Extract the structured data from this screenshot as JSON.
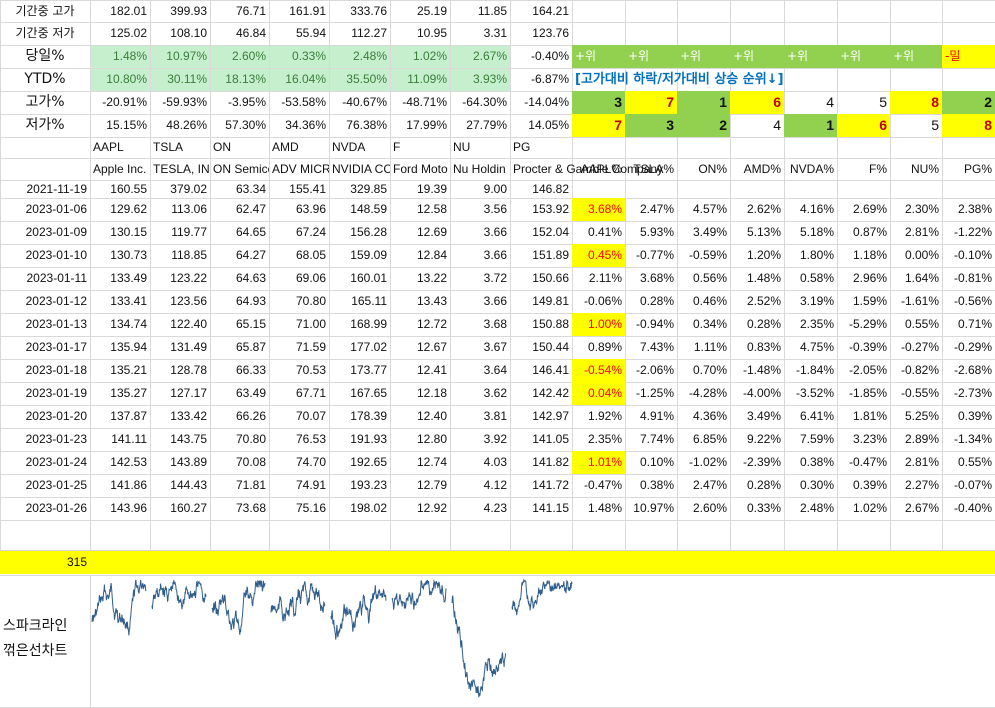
{
  "colors": {
    "light_green": "#c6efce",
    "green_text": "#3a7d3a",
    "bright_green": "#92d050",
    "yellow": "#ffff00",
    "dark_red": "#c00000",
    "red": "#ff0000",
    "blue": "#0070c0",
    "spark_blue": "#2f5d8c",
    "grid": "#d9d9d9"
  },
  "summary_rows": [
    {
      "label": "기간중 고가",
      "values": [
        "182.01",
        "399.93",
        "76.71",
        "161.91",
        "333.76",
        "25.19",
        "11.85",
        "164.21"
      ]
    },
    {
      "label": "기간중 저가",
      "values": [
        "125.02",
        "108.10",
        "46.84",
        "55.94",
        "112.27",
        "10.95",
        "3.31",
        "123.76"
      ]
    },
    {
      "label": "당일%",
      "values": [
        "1.48%",
        "10.97%",
        "2.60%",
        "0.33%",
        "2.48%",
        "1.02%",
        "2.67%",
        "-0.40%"
      ]
    },
    {
      "label": "YTD%",
      "values": [
        "10.80%",
        "30.11%",
        "18.13%",
        "16.04%",
        "35.50%",
        "11.09%",
        "3.93%",
        "-6.87%"
      ]
    },
    {
      "label": "고가%",
      "values": [
        "-20.91%",
        "-59.93%",
        "-3.95%",
        "-53.58%",
        "-40.67%",
        "-48.71%",
        "-64.30%",
        "-14.04%"
      ]
    },
    {
      "label": "저가%",
      "values": [
        "15.15%",
        "48.26%",
        "57.30%",
        "34.36%",
        "76.38%",
        "17.99%",
        "27.79%",
        "14.05%"
      ]
    }
  ],
  "direction_row": [
    "+위",
    "+위",
    "+위",
    "+위",
    "+위",
    "+위",
    "+위",
    "-밀"
  ],
  "ranking_caption": "[고가대비 하락/저가대비 상승 순위↓]",
  "rank_high": [
    "3",
    "7",
    "1",
    "6",
    "4",
    "5",
    "8",
    "2"
  ],
  "rank_low": [
    "7",
    "3",
    "2",
    "4",
    "1",
    "6",
    "5",
    "8"
  ],
  "tickers": [
    "AAPL",
    "TSLA",
    "ON",
    "AMD",
    "NVDA",
    "F",
    "NU",
    "PG"
  ],
  "company_names": [
    "Apple Inc.",
    "TESLA, INC",
    "ON Semico",
    "ADV MICR",
    "NVIDIA CC",
    "Ford Moto",
    "Nu Holdin",
    "Procter & Gamble Company"
  ],
  "pct_headers": [
    "AAPL%",
    "TSLA%",
    "ON%",
    "AMD%",
    "NVDA%",
    "F%",
    "NU%",
    "PG%"
  ],
  "base_row": {
    "date": "2021-11-19",
    "values": [
      "160.55",
      "379.02",
      "63.34",
      "155.41",
      "329.85",
      "19.39",
      "9.00",
      "146.82"
    ]
  },
  "rows": [
    {
      "date": "2023-01-06",
      "prices": [
        "129.62",
        "113.06",
        "62.47",
        "63.96",
        "148.59",
        "12.58",
        "3.56",
        "153.92"
      ],
      "pcts": [
        "3.68%",
        "2.47%",
        "4.57%",
        "2.62%",
        "4.16%",
        "2.69%",
        "2.30%",
        "2.38%"
      ]
    },
    {
      "date": "2023-01-09",
      "prices": [
        "130.15",
        "119.77",
        "64.65",
        "67.24",
        "156.28",
        "12.69",
        "3.66",
        "152.04"
      ],
      "pcts": [
        "0.41%",
        "5.93%",
        "3.49%",
        "5.13%",
        "5.18%",
        "0.87%",
        "2.81%",
        "-1.22%"
      ]
    },
    {
      "date": "2023-01-10",
      "prices": [
        "130.73",
        "118.85",
        "64.27",
        "68.05",
        "159.09",
        "12.84",
        "3.66",
        "151.89"
      ],
      "pcts": [
        "0.45%",
        "-0.77%",
        "-0.59%",
        "1.20%",
        "1.80%",
        "1.18%",
        "0.00%",
        "-0.10%"
      ]
    },
    {
      "date": "2023-01-11",
      "prices": [
        "133.49",
        "123.22",
        "64.63",
        "69.06",
        "160.01",
        "13.22",
        "3.72",
        "150.66"
      ],
      "pcts": [
        "2.11%",
        "3.68%",
        "0.56%",
        "1.48%",
        "0.58%",
        "2.96%",
        "1.64%",
        "-0.81%"
      ]
    },
    {
      "date": "2023-01-12",
      "prices": [
        "133.41",
        "123.56",
        "64.93",
        "70.80",
        "165.11",
        "13.43",
        "3.66",
        "149.81"
      ],
      "pcts": [
        "-0.06%",
        "0.28%",
        "0.46%",
        "2.52%",
        "3.19%",
        "1.59%",
        "-1.61%",
        "-0.56%"
      ]
    },
    {
      "date": "2023-01-13",
      "prices": [
        "134.74",
        "122.40",
        "65.15",
        "71.00",
        "168.99",
        "12.72",
        "3.68",
        "150.88"
      ],
      "pcts": [
        "1.00%",
        "-0.94%",
        "0.34%",
        "0.28%",
        "2.35%",
        "-5.29%",
        "0.55%",
        "0.71%"
      ]
    },
    {
      "date": "2023-01-17",
      "prices": [
        "135.94",
        "131.49",
        "65.87",
        "71.59",
        "177.02",
        "12.67",
        "3.67",
        "150.44"
      ],
      "pcts": [
        "0.89%",
        "7.43%",
        "1.11%",
        "0.83%",
        "4.75%",
        "-0.39%",
        "-0.27%",
        "-0.29%"
      ]
    },
    {
      "date": "2023-01-18",
      "prices": [
        "135.21",
        "128.78",
        "66.33",
        "70.53",
        "173.77",
        "12.41",
        "3.64",
        "146.41"
      ],
      "pcts": [
        "-0.54%",
        "-2.06%",
        "0.70%",
        "-1.48%",
        "-1.84%",
        "-2.05%",
        "-0.82%",
        "-2.68%"
      ]
    },
    {
      "date": "2023-01-19",
      "prices": [
        "135.27",
        "127.17",
        "63.49",
        "67.71",
        "167.65",
        "12.18",
        "3.62",
        "142.42"
      ],
      "pcts": [
        "0.04%",
        "-1.25%",
        "-4.28%",
        "-4.00%",
        "-3.52%",
        "-1.85%",
        "-0.55%",
        "-2.73%"
      ]
    },
    {
      "date": "2023-01-20",
      "prices": [
        "137.87",
        "133.42",
        "66.26",
        "70.07",
        "178.39",
        "12.40",
        "3.81",
        "142.97"
      ],
      "pcts": [
        "1.92%",
        "4.91%",
        "4.36%",
        "3.49%",
        "6.41%",
        "1.81%",
        "5.25%",
        "0.39%"
      ]
    },
    {
      "date": "2023-01-23",
      "prices": [
        "141.11",
        "143.75",
        "70.80",
        "76.53",
        "191.93",
        "12.80",
        "3.92",
        "141.05"
      ],
      "pcts": [
        "2.35%",
        "7.74%",
        "6.85%",
        "9.22%",
        "7.59%",
        "3.23%",
        "2.89%",
        "-1.34%"
      ]
    },
    {
      "date": "2023-01-24",
      "prices": [
        "142.53",
        "143.89",
        "70.08",
        "74.70",
        "192.65",
        "12.74",
        "4.03",
        "141.82"
      ],
      "pcts": [
        "1.01%",
        "0.10%",
        "-1.02%",
        "-2.39%",
        "0.38%",
        "-0.47%",
        "2.81%",
        "0.55%"
      ]
    },
    {
      "date": "2023-01-25",
      "prices": [
        "141.86",
        "144.43",
        "71.81",
        "74.91",
        "193.23",
        "12.79",
        "4.12",
        "141.72"
      ],
      "pcts": [
        "-0.47%",
        "0.38%",
        "2.47%",
        "0.28%",
        "0.30%",
        "0.39%",
        "2.27%",
        "-0.07%"
      ]
    },
    {
      "date": "2023-01-26",
      "prices": [
        "143.96",
        "160.27",
        "73.68",
        "75.16",
        "198.02",
        "12.92",
        "4.23",
        "141.15"
      ],
      "pcts": [
        "1.48%",
        "10.97%",
        "2.60%",
        "0.33%",
        "2.48%",
        "1.02%",
        "2.67%",
        "-0.40%"
      ]
    }
  ],
  "highlighted_aapl_rows": [
    0,
    2,
    5,
    7,
    8,
    11
  ],
  "yellow_bar_value": "315",
  "sparkline_label_1": "스파크라인",
  "sparkline_label_2": "꺾은선차트",
  "sparkline_icon": "line-chart-icon"
}
